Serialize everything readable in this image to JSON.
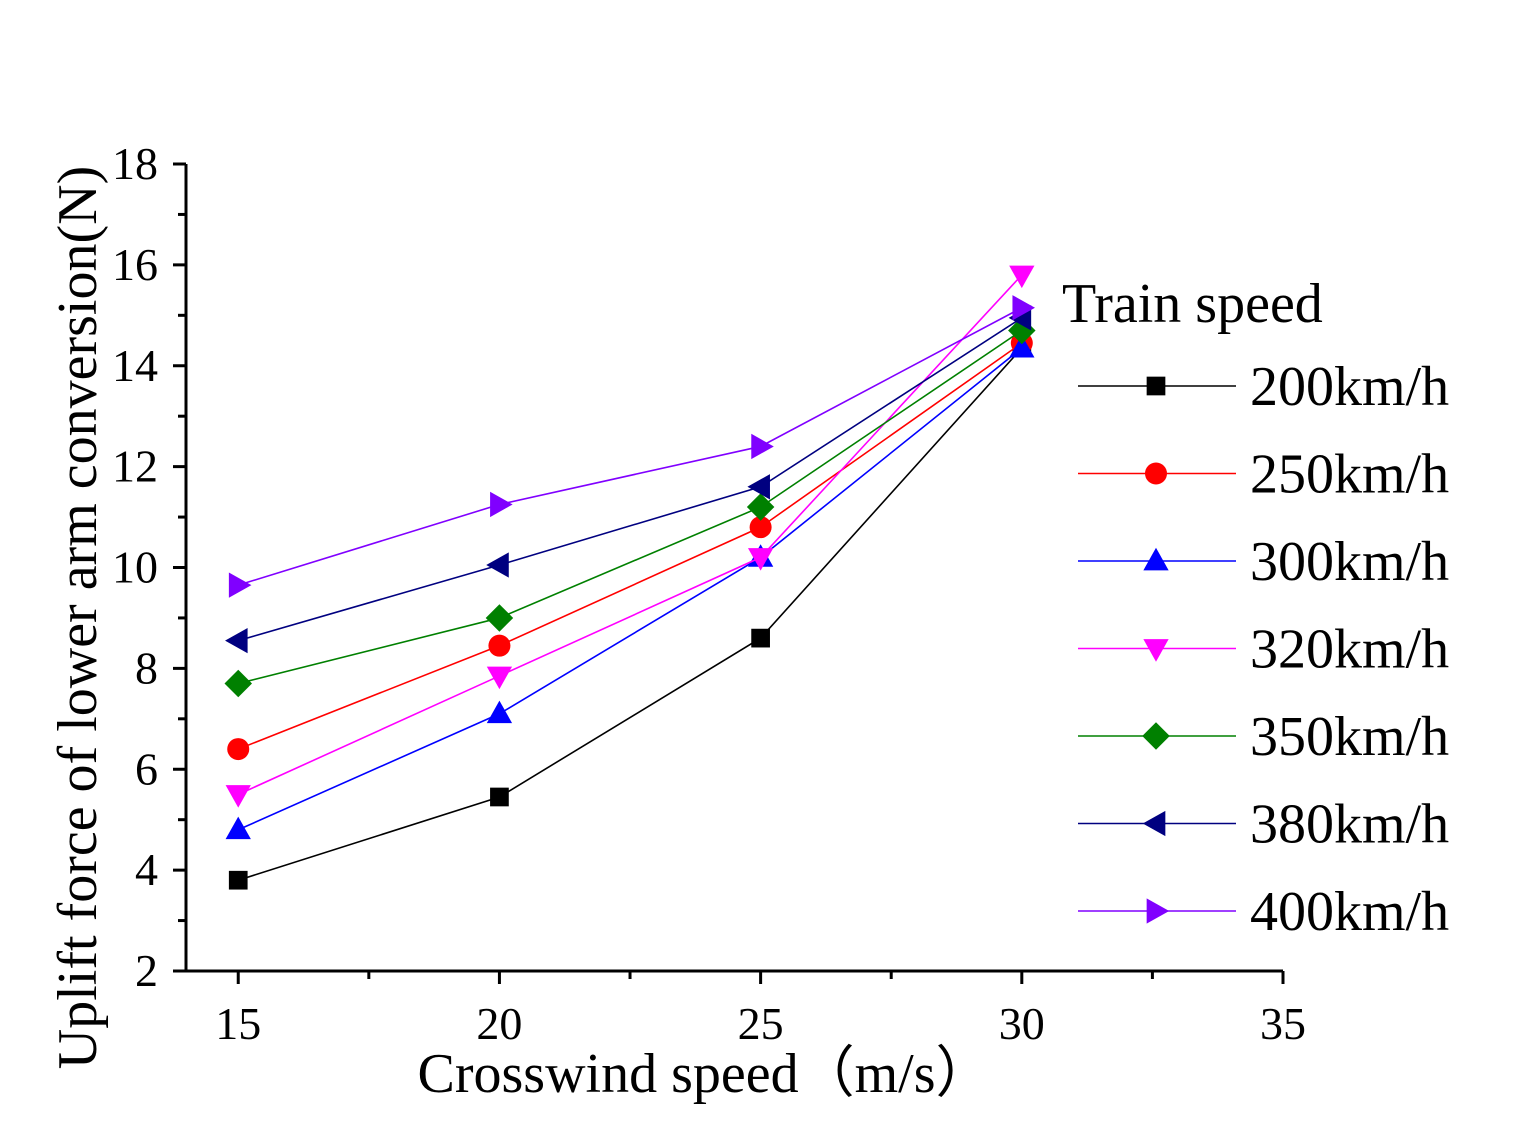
{
  "chart_data": {
    "type": "line",
    "xlabel": "Crosswind speed（m/s）",
    "ylabel": "Uplift force of lower arm conversion(N)",
    "xlim": [
      14,
      35
    ],
    "ylim": [
      2,
      18
    ],
    "xticks": [
      "15",
      "20",
      "25",
      "30",
      "35"
    ],
    "yticks": [
      "2",
      "4",
      "6",
      "8",
      "10",
      "12",
      "14",
      "16",
      "18"
    ],
    "legend_title": "Train speed",
    "legend_position": "right",
    "x": [
      15,
      20,
      25,
      30
    ],
    "series": [
      {
        "name": "200km/h",
        "color": "#000000",
        "marker": "square",
        "values": [
          3.8,
          5.45,
          8.6,
          14.35
        ]
      },
      {
        "name": "250km/h",
        "color": "#ff0000",
        "marker": "circle",
        "values": [
          6.4,
          8.45,
          10.8,
          14.45
        ]
      },
      {
        "name": "300km/h",
        "color": "#0000ff",
        "marker": "triangle-up",
        "values": [
          4.8,
          7.1,
          10.2,
          14.35
        ]
      },
      {
        "name": "320km/h",
        "color": "#ff00ff",
        "marker": "triangle-down",
        "values": [
          5.5,
          7.85,
          10.2,
          15.8
        ]
      },
      {
        "name": "350km/h",
        "color": "#008000",
        "marker": "diamond",
        "values": [
          7.7,
          9.0,
          11.2,
          14.7
        ]
      },
      {
        "name": "380km/h",
        "color": "#000080",
        "marker": "triangle-left",
        "values": [
          8.55,
          10.05,
          11.6,
          14.95
        ]
      },
      {
        "name": "400km/h",
        "color": "#8000ff",
        "marker": "triangle-right",
        "values": [
          9.65,
          11.25,
          12.4,
          15.15
        ]
      }
    ]
  }
}
